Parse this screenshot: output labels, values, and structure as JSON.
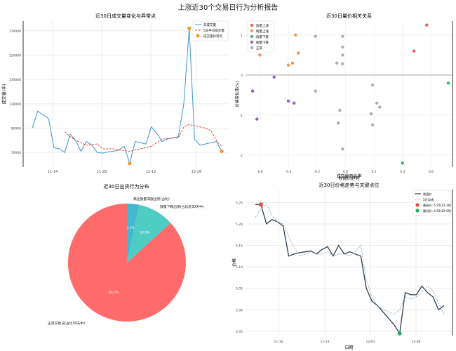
{
  "suptitle": "上涨近30个交易日行为分析报告",
  "chart_data": [
    {
      "type": "line",
      "title": "近30日成交量变化与异常点",
      "xlabel": "",
      "ylabel": "成交量(手)",
      "x_ticks": [
        "11-14",
        "11-28",
        "12-12",
        "12-26"
      ],
      "y_ticks": [
        70000,
        90000,
        110000,
        130000,
        150000,
        170000
      ],
      "ylim": [
        58000,
        178000
      ],
      "legend": [
        "日成交量",
        "5日平均成交量",
        "成交量异常点"
      ],
      "legend_position": "top-right",
      "series": [
        {
          "name": "日成交量",
          "color": "#3a95d0",
          "style": "solid",
          "values": [
            90000,
            104000,
            101000,
            98000,
            74000,
            73000,
            70000,
            85000,
            80000,
            71000,
            79000,
            76000,
            70000,
            69500,
            70500,
            71000,
            72000,
            75000,
            61000,
            79000,
            78000,
            77000,
            91000,
            86000,
            79000,
            81000,
            82000,
            83000,
            110000,
            172000,
            81000,
            76000,
            77000,
            78000,
            79000,
            71000
          ]
        },
        {
          "name": "5日平均成交量",
          "color": "#e04030",
          "style": "dashed",
          "values": [
            null,
            null,
            null,
            null,
            null,
            null,
            87000,
            83000,
            80000,
            78000,
            76000,
            76500,
            77000,
            73000,
            73000,
            73000,
            72000,
            71500,
            71000,
            72000,
            73000,
            74000,
            75000,
            78000,
            81000,
            81500,
            82000,
            82000,
            91000,
            93000,
            92000,
            91000,
            90000,
            88000,
            80000,
            75000
          ]
        },
        {
          "name": "成交量异常点",
          "color": "#f29b1e",
          "style": "marker",
          "points": [
            [
              29,
              172000
            ],
            [
              18,
              61000
            ],
            [
              35,
              71000
            ]
          ]
        }
      ]
    },
    {
      "type": "scatter",
      "title": "近30日量价相关关系",
      "xlabel": "成交量变化率",
      "ylabel": "价格变化率(%)",
      "x_ticks": [
        "-0.6",
        "-0.4",
        "-0.2",
        "0.0",
        "0.2",
        "0.4",
        "0.6"
      ],
      "y_ticks": [
        "1",
        "0",
        "-1",
        "-2"
      ],
      "legend": [
        "放量上涨",
        "缩量上涨",
        "放量下跌",
        "缩量下跌",
        "正常"
      ],
      "legend_position": "top-left",
      "series": [
        {
          "name": "放量上涨",
          "color": "#e8605a",
          "points": [
            [
              0.57,
              1.25
            ],
            [
              0.48,
              0.6
            ]
          ]
        },
        {
          "name": "缩量上涨",
          "color": "#f0974a",
          "points": [
            [
              -0.6,
              0.5
            ],
            [
              -0.35,
              1.0
            ],
            [
              -0.33,
              0.55
            ],
            [
              -0.37,
              0.3
            ],
            [
              -0.4,
              0.25
            ]
          ]
        },
        {
          "name": "放量下跌",
          "color": "#3cba6a",
          "points": [
            [
              0.72,
              -0.2
            ],
            [
              0.4,
              -2.2
            ]
          ]
        },
        {
          "name": "缩量下跌",
          "color": "#9a5cc0",
          "points": [
            [
              -0.5,
              -0.05
            ],
            [
              -0.65,
              -0.4
            ],
            [
              -0.4,
              -0.65
            ],
            [
              -0.36,
              -0.7
            ],
            [
              -0.62,
              -1.1
            ]
          ]
        },
        {
          "name": "正常",
          "color": "#a8b0b4",
          "points": [
            [
              -0.21,
              0.97
            ],
            [
              -0.02,
              0.97
            ],
            [
              -0.02,
              0.7
            ],
            [
              -0.02,
              0.5
            ],
            [
              -0.06,
              0.3
            ],
            [
              -0.02,
              0.28
            ],
            [
              0.19,
              -0.25
            ],
            [
              -0.21,
              -0.4
            ],
            [
              0.22,
              -0.7
            ],
            [
              0.24,
              -0.8
            ],
            [
              0.18,
              -0.97
            ],
            [
              -0.04,
              -0.88
            ],
            [
              -0.05,
              -1.2
            ],
            [
              0.19,
              -1.25
            ],
            [
              -0.02,
              -1.85
            ]
          ]
        }
      ]
    },
    {
      "type": "pie",
      "title": "近30日出货行为分布",
      "slices": [
        {
          "label": "正常交易日(占比30天中)",
          "value": 86.7,
          "pct_label": "86.7%",
          "color": "#ff6b6b"
        },
        {
          "label": "放量下跌出货(占比近30天中)",
          "value": 10.0,
          "pct_label": "10.0%",
          "color": "#4ecdc4"
        },
        {
          "label": "高位放量滞涨出货(占比)",
          "value": 3.3,
          "pct_label": "3.3%",
          "color": "#45b7d1"
        }
      ]
    },
    {
      "type": "line",
      "title": "近30日价格走势与关键点位",
      "subtitle": "收盘价趋势",
      "xlabel": "日期",
      "ylabel": "价格",
      "x_ticks": [
        "11-16",
        "11-23",
        "12-01",
        "12-08"
      ],
      "y_ticks": [
        "5.25",
        "5.20",
        "5.15",
        "5.10",
        "5.05",
        "5.00",
        "4.95"
      ],
      "ylim": [
        4.94,
        5.28
      ],
      "legend": [
        "收盘价",
        "5日均线",
        "最高价: 5.25(11-16)",
        "最低价: 4.95(12-05)"
      ],
      "legend_position": "top-right",
      "series": [
        {
          "name": "收盘价",
          "color": "#2c3e50",
          "style": "solid",
          "values": [
            5.245,
            5.245,
            5.2,
            5.21,
            5.205,
            5.195,
            5.125,
            5.13,
            5.133,
            5.135,
            5.137,
            5.13,
            5.14,
            5.147,
            5.125,
            5.15,
            5.13,
            5.135,
            5.13,
            5.125,
            5.05,
            5.02,
            5.01,
            4.995,
            4.98,
            4.965,
            4.945,
            5.04,
            5.035,
            5.035,
            5.055,
            5.04,
            5.03,
            5.0,
            5.01
          ]
        },
        {
          "name": "5日均线",
          "color": "#95a5a6",
          "style": "dashed",
          "values": [
            5.215,
            5.235,
            5.245,
            5.22,
            5.205,
            5.2,
            5.17,
            5.145,
            5.125,
            5.13,
            5.135,
            5.13,
            5.13,
            5.135,
            5.125,
            5.13,
            5.13,
            5.125,
            5.135,
            5.15,
            5.07,
            5.03,
            5.01,
            5.0,
            4.995,
            4.99,
            5.0,
            5.03,
            5.025,
            5.03,
            5.04,
            5.055,
            5.045,
            5.015,
            4.99
          ]
        },
        {
          "name": "最高价",
          "color": "#e74c3c",
          "style": "marker",
          "points": [
            [
              1,
              5.245
            ]
          ]
        },
        {
          "name": "最低价",
          "color": "#27ae60",
          "style": "marker",
          "points": [
            [
              26,
              4.945
            ]
          ]
        }
      ]
    }
  ]
}
